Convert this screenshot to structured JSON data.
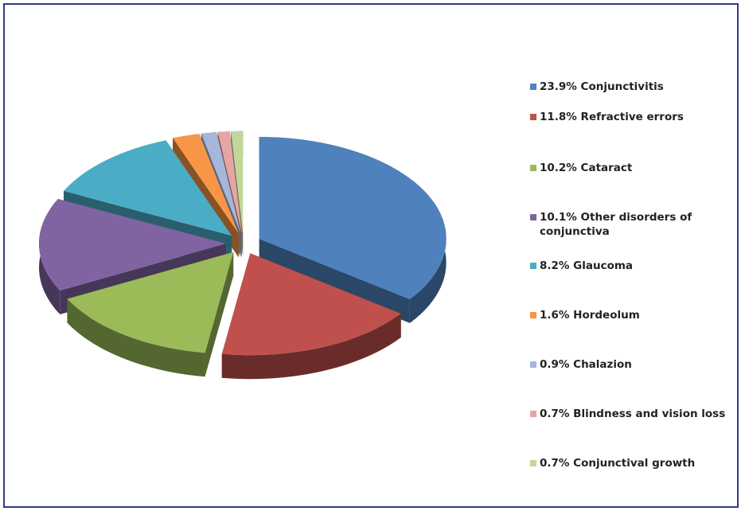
{
  "chart_data": {
    "type": "pie",
    "categories": [
      "Conjunctivitis",
      "Refractive errors",
      "Cataract",
      "Other disorders of conjunctiva",
      "Glaucoma",
      "Hordeolum",
      "Chalazion",
      "Blindness and vision loss",
      "Conjunctival growth"
    ],
    "values": [
      23.9,
      11.8,
      10.2,
      10.1,
      8.2,
      1.6,
      0.9,
      0.7,
      0.7
    ],
    "value_labels": [
      "23.9%",
      "11.8%",
      "10.2%",
      "10.1%",
      "8.2%",
      "1.6%",
      "0.9%",
      "0.7%",
      "0.7%"
    ],
    "colors": [
      "#4f81bd",
      "#c0504d",
      "#9bbb59",
      "#8064a2",
      "#4bacc6",
      "#f79646",
      "#a5b7da",
      "#e6a5a4",
      "#c3d69b"
    ],
    "legend": "right"
  }
}
